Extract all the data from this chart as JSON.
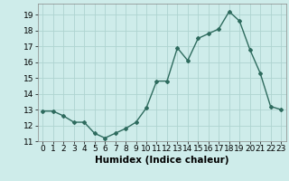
{
  "x": [
    0,
    1,
    2,
    3,
    4,
    5,
    6,
    7,
    8,
    9,
    10,
    11,
    12,
    13,
    14,
    15,
    16,
    17,
    18,
    19,
    20,
    21,
    22,
    23
  ],
  "y": [
    12.9,
    12.9,
    12.6,
    12.2,
    12.2,
    11.5,
    11.2,
    11.5,
    11.8,
    12.2,
    13.1,
    14.8,
    14.8,
    16.9,
    16.1,
    17.5,
    17.8,
    18.1,
    19.2,
    18.6,
    16.8,
    15.3,
    13.2,
    13.0
  ],
  "line_color": "#2e6b5e",
  "marker": "D",
  "marker_size": 2.0,
  "bg_color": "#ceecea",
  "grid_color": "#aed4d0",
  "xlabel": "Humidex (Indice chaleur)",
  "xlim": [
    -0.5,
    23.5
  ],
  "ylim": [
    11.0,
    19.7
  ],
  "yticks": [
    11,
    12,
    13,
    14,
    15,
    16,
    17,
    18,
    19
  ],
  "xticks": [
    0,
    1,
    2,
    3,
    4,
    5,
    6,
    7,
    8,
    9,
    10,
    11,
    12,
    13,
    14,
    15,
    16,
    17,
    18,
    19,
    20,
    21,
    22,
    23
  ],
  "tick_fontsize": 6.5,
  "xlabel_fontsize": 7.5,
  "linewidth": 1.0
}
